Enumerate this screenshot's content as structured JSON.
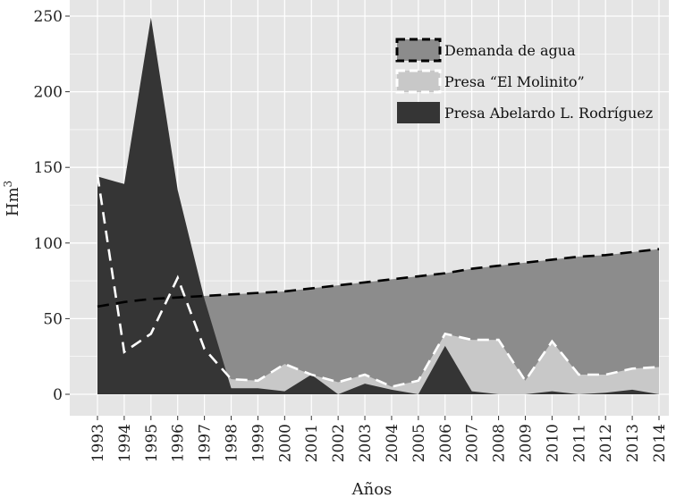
{
  "chart_data": {
    "type": "area",
    "xlabel": "Años",
    "ylabel": "Hm",
    "ylabel_sup": "3",
    "ylim": [
      0,
      250
    ],
    "yticks": [
      0,
      50,
      100,
      150,
      200,
      250
    ],
    "grid": true,
    "legend_position": "top-right",
    "x": [
      1993,
      1994,
      1995,
      1996,
      1997,
      1998,
      1999,
      2000,
      2001,
      2002,
      2003,
      2004,
      2005,
      2006,
      2007,
      2008,
      2009,
      2010,
      2011,
      2012,
      2013,
      2014
    ],
    "series": [
      {
        "name": "Demanda de agua",
        "style": "dashed-black",
        "fill": "#8c8c8c",
        "values": [
          58,
          61,
          63,
          64,
          65,
          66,
          67,
          68,
          70,
          72,
          74,
          76,
          78,
          80,
          83,
          85,
          87,
          89,
          91,
          92,
          94,
          96
        ]
      },
      {
        "name": "Presa “El Molinito”",
        "style": "dashed-white",
        "fill": "#c8c8c8",
        "values": [
          145,
          28,
          40,
          77,
          30,
          10,
          9,
          20,
          13,
          8,
          13,
          5,
          9,
          40,
          36,
          36,
          9,
          35,
          13,
          13,
          17,
          18
        ]
      },
      {
        "name": "Presa Abelardo L. Rodríguez",
        "style": "solid",
        "fill": "#353535",
        "values": [
          144,
          139,
          249,
          135,
          63,
          4,
          4,
          2,
          13,
          0,
          7,
          3,
          0,
          32,
          2,
          0,
          0,
          2,
          0,
          1,
          3,
          0
        ]
      }
    ],
    "colors": {
      "panel_background": "#e5e5e5",
      "grid": "#ffffff",
      "demand_fill": "#8c8c8c",
      "molinito_fill": "#c8c8c8",
      "abelardo_fill": "#353535"
    }
  }
}
